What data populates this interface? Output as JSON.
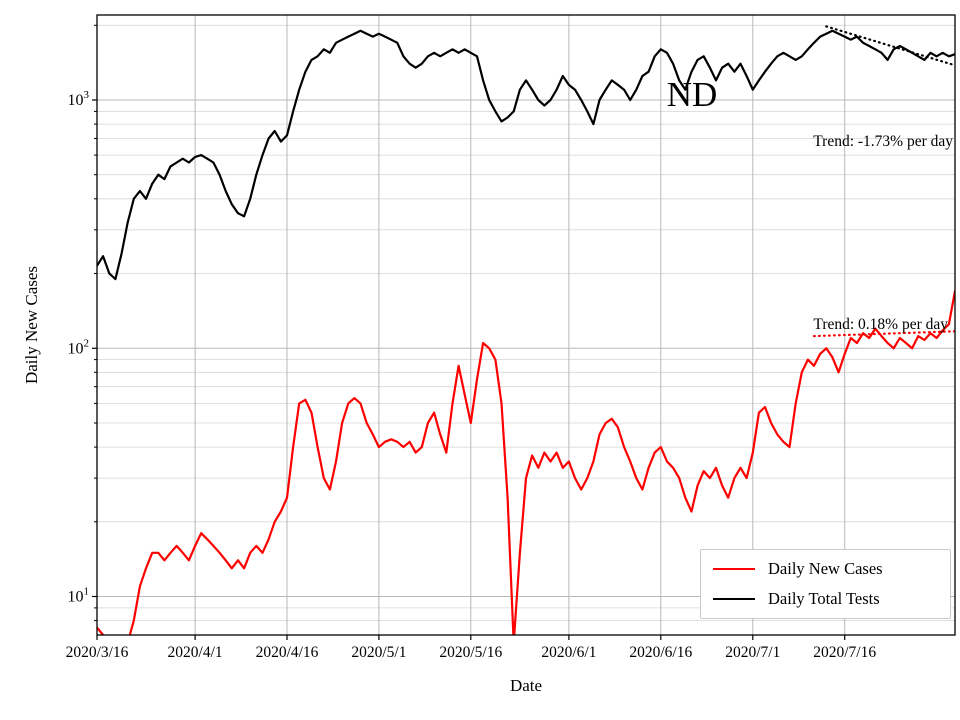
{
  "chart_data": {
    "type": "line",
    "title": "",
    "state_label": "ND",
    "xlabel": "Date",
    "ylabel": "Daily New Cases",
    "yscale": "log",
    "ylim": [
      7,
      2200
    ],
    "xlim_days": [
      0,
      140
    ],
    "start_date": "2020/3/16",
    "grid": true,
    "x_ticks": [
      {
        "day": 0,
        "label": "2020/3/16"
      },
      {
        "day": 16,
        "label": "2020/4/1"
      },
      {
        "day": 31,
        "label": "2020/4/16"
      },
      {
        "day": 46,
        "label": "2020/5/1"
      },
      {
        "day": 61,
        "label": "2020/5/16"
      },
      {
        "day": 77,
        "label": "2020/6/1"
      },
      {
        "day": 92,
        "label": "2020/6/16"
      },
      {
        "day": 107,
        "label": "2020/7/1"
      },
      {
        "day": 122,
        "label": "2020/7/16"
      }
    ],
    "y_ticks": [
      {
        "value": 10,
        "base": "10",
        "exponent": "1"
      },
      {
        "value": 100,
        "base": "10",
        "exponent": "2"
      },
      {
        "value": 1000,
        "base": "10",
        "exponent": "3"
      }
    ],
    "series": [
      {
        "name": "Daily New Cases",
        "color": "#ff0000",
        "start_day": 0,
        "values": [
          7.5,
          7,
          4,
          3,
          5,
          6.5,
          8,
          11,
          13,
          15,
          15,
          14,
          15,
          16,
          15,
          14,
          16,
          18,
          17,
          16,
          15,
          14,
          13,
          14,
          13,
          15,
          16,
          15,
          17,
          20,
          22,
          25,
          40,
          60,
          62,
          55,
          40,
          30,
          27,
          35,
          50,
          60,
          63,
          60,
          50,
          45,
          40,
          42,
          43,
          42,
          40,
          42,
          38,
          40,
          50,
          55,
          45,
          38,
          60,
          85,
          65,
          50,
          75,
          105,
          100,
          90,
          60,
          25,
          6.5,
          15,
          30,
          37,
          33,
          38,
          35,
          38,
          33,
          35,
          30,
          27,
          30,
          35,
          45,
          50,
          52,
          48,
          40,
          35,
          30,
          27,
          33,
          38,
          40,
          35,
          33,
          30,
          25,
          22,
          28,
          32,
          30,
          33,
          28,
          25,
          30,
          33,
          30,
          38,
          55,
          58,
          50,
          45,
          42,
          40,
          60,
          80,
          90,
          85,
          95,
          100,
          92,
          80,
          95,
          110,
          105,
          115,
          110,
          120,
          112,
          105,
          100,
          110,
          105,
          100,
          112,
          108,
          115,
          110,
          118,
          125,
          170
        ]
      },
      {
        "name": "Daily Total Tests",
        "color": "#000000",
        "start_day": 0,
        "values": [
          215,
          235,
          200,
          190,
          240,
          320,
          400,
          430,
          400,
          460,
          500,
          480,
          540,
          560,
          580,
          560,
          590,
          600,
          580,
          560,
          500,
          430,
          380,
          350,
          340,
          400,
          500,
          600,
          700,
          750,
          680,
          720,
          900,
          1100,
          1300,
          1450,
          1500,
          1600,
          1550,
          1700,
          1750,
          1800,
          1850,
          1900,
          1850,
          1800,
          1850,
          1800,
          1750,
          1700,
          1500,
          1400,
          1350,
          1400,
          1500,
          1550,
          1500,
          1550,
          1600,
          1550,
          1600,
          1550,
          1500,
          1200,
          1000,
          900,
          820,
          850,
          900,
          1100,
          1200,
          1100,
          1000,
          950,
          1000,
          1100,
          1250,
          1150,
          1100,
          1000,
          900,
          800,
          1000,
          1100,
          1200,
          1150,
          1100,
          1000,
          1100,
          1250,
          1300,
          1500,
          1600,
          1550,
          1400,
          1200,
          1100,
          1300,
          1450,
          1500,
          1350,
          1200,
          1350,
          1400,
          1300,
          1400,
          1250,
          1100,
          1200,
          1300,
          1400,
          1500,
          1550,
          1500,
          1450,
          1500,
          1600,
          1700,
          1800,
          1850,
          1900,
          1850,
          1800,
          1750,
          1800,
          1700,
          1650,
          1600,
          1550,
          1450,
          1600,
          1650,
          1600,
          1550,
          1500,
          1450,
          1550,
          1500,
          1550,
          1500,
          1530
        ]
      }
    ],
    "trends": [
      {
        "label": "Trend: -1.73% per day",
        "color": "#000000",
        "start_day": 119,
        "end_day": 140,
        "start_value": 1980,
        "end_value": 1380
      },
      {
        "label": "Trend: 0.18% per day",
        "color": "#ff0000",
        "start_day": 117,
        "end_day": 140,
        "start_value": 112,
        "end_value": 117
      }
    ],
    "legend": {
      "position": "lower right",
      "items": [
        "Daily New Cases",
        "Daily Total Tests"
      ]
    }
  }
}
